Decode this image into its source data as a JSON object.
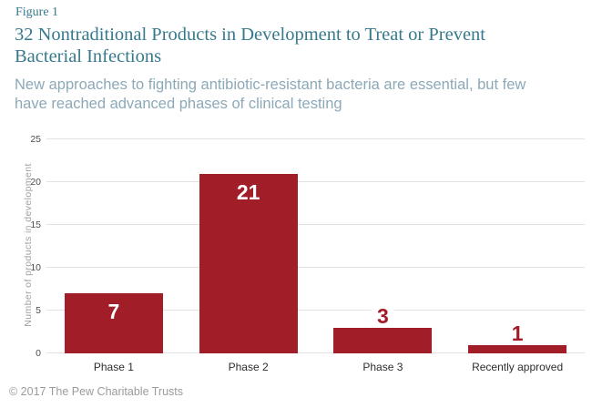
{
  "header": {
    "figure_label": "Figure 1",
    "title_lines": [
      "32 Nontraditional Products in Development to Treat or Prevent",
      "Bacterial Infections"
    ],
    "subtitle_lines": [
      "New approaches to fighting antibiotic-resistant bacteria are essential, but few",
      "have reached advanced phases of clinical testing"
    ]
  },
  "footer": {
    "copyright": "© 2017 The Pew Charitable Trusts"
  },
  "colors": {
    "accent_teal": "#37798C",
    "subtitle_blue_gray": "#8CA9B8",
    "bar_red": "#A11D28",
    "gridline_gray": "#E2E2E2",
    "tick_gray": "#4D4D4D",
    "axis_title_gray": "#9EA1A3",
    "footer_gray": "#9B9B9B"
  },
  "chart_data": {
    "type": "bar",
    "title": "32 Nontraditional Products in Development to Treat or Prevent Bacterial Infections",
    "subtitle": "New approaches to fighting antibiotic-resistant bacteria are essential, but few have reached advanced phases of clinical testing",
    "categories": [
      "Phase 1",
      "Phase 2",
      "Phase 3",
      "Recently approved"
    ],
    "values": [
      7,
      21,
      3,
      1
    ],
    "xlabel": "",
    "ylabel": "Number of products in development",
    "ylim": [
      0,
      25
    ],
    "yticks": [
      0,
      5,
      10,
      15,
      20,
      25
    ],
    "grid": true,
    "legend": "none",
    "bar_color": "#A11D28",
    "value_label_positions": [
      "inside",
      "inside",
      "above",
      "above"
    ],
    "value_label_color_inside": "#FFFFFF",
    "value_label_color_above": "#A11D28"
  }
}
